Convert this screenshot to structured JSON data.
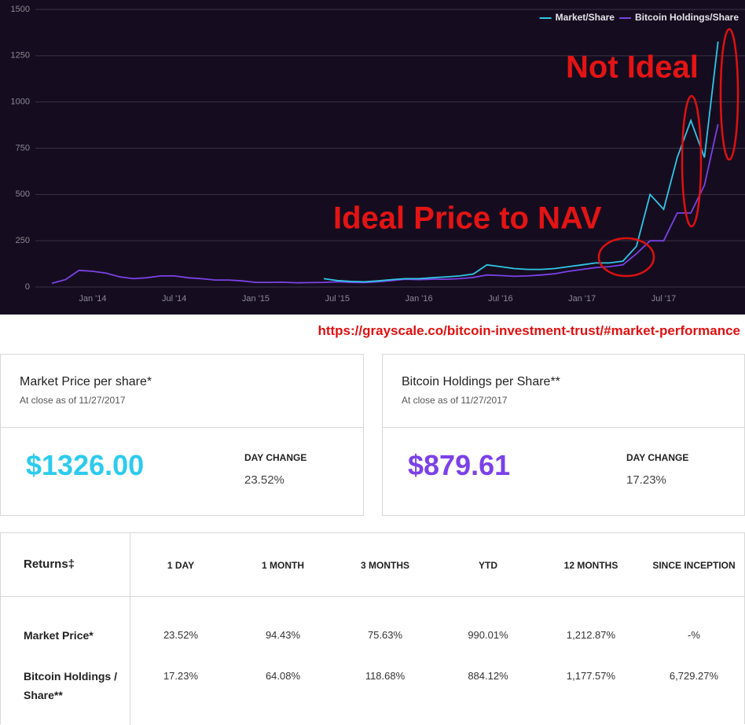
{
  "chart_data": {
    "type": "line",
    "x": [
      null,
      null,
      null,
      "Jan '14",
      null,
      null,
      null,
      null,
      null,
      "Jul '14",
      null,
      null,
      null,
      null,
      null,
      "Jan '15",
      null,
      null,
      null,
      null,
      null,
      "Jul '15",
      null,
      null,
      null,
      null,
      null,
      "Jan '16",
      null,
      null,
      null,
      null,
      null,
      "Jul '16",
      null,
      null,
      null,
      null,
      null,
      "Jan '17",
      null,
      null,
      null,
      null,
      null,
      "Jul '17",
      null,
      null,
      null,
      null
    ],
    "series": [
      {
        "name": "Market/Share",
        "color": "#31c6e6",
        "values": [
          null,
          null,
          null,
          null,
          null,
          null,
          null,
          null,
          null,
          null,
          null,
          null,
          null,
          null,
          null,
          null,
          null,
          null,
          null,
          null,
          45,
          35,
          30,
          28,
          33,
          40,
          45,
          45,
          50,
          55,
          60,
          70,
          120,
          110,
          100,
          95,
          95,
          100,
          110,
          120,
          130,
          130,
          140,
          220,
          500,
          420,
          700,
          900,
          700,
          1326
        ]
      },
      {
        "name": "Bitcoin Holdings/Share",
        "color": "#7a42e6",
        "values": [
          20,
          40,
          90,
          85,
          75,
          55,
          45,
          50,
          60,
          60,
          50,
          45,
          38,
          38,
          33,
          25,
          25,
          26,
          23,
          24,
          25,
          28,
          25,
          24,
          28,
          35,
          42,
          40,
          42,
          42,
          45,
          52,
          65,
          62,
          58,
          60,
          65,
          72,
          85,
          95,
          105,
          110,
          120,
          180,
          250,
          250,
          400,
          400,
          550,
          880
        ]
      }
    ],
    "ylim": [
      0,
      1500
    ],
    "yticks": [
      0,
      250,
      500,
      750,
      1000,
      1250,
      1500
    ],
    "grid": true,
    "legend": "top-right",
    "annotations": [
      "Not Ideal",
      "Ideal Price to NAV"
    ]
  },
  "source_url": "https://grayscale.co/bitcoin-investment-trust/#market-performance",
  "cards": [
    {
      "title": "Market Price per share*",
      "subtitle": "At close as of 11/27/2017",
      "value": "$1326.00",
      "change_label": "DAY CHANGE",
      "change": "23.52%"
    },
    {
      "title": "Bitcoin Holdings per Share**",
      "subtitle": "At close as of 11/27/2017",
      "value": "$879.61",
      "change_label": "DAY CHANGE",
      "change": "17.23%"
    }
  ],
  "returns_table": {
    "title": "Returns‡",
    "columns": [
      "1 DAY",
      "1 MONTH",
      "3 MONTHS",
      "YTD",
      "12 MONTHS",
      "SINCE INCEPTION"
    ],
    "rows": [
      {
        "label": "Market Price*",
        "values": [
          "23.52%",
          "94.43%",
          "75.63%",
          "990.01%",
          "1,212.87%",
          "-%"
        ]
      },
      {
        "label": "Bitcoin Holdings / Share**",
        "values": [
          "17.23%",
          "64.08%",
          "118.68%",
          "884.12%",
          "1,177.57%",
          "6,729.27%"
        ]
      }
    ]
  }
}
